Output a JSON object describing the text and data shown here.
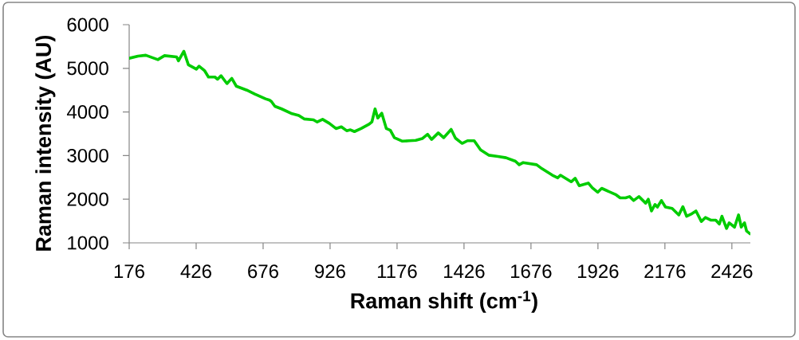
{
  "chart_data": {
    "type": "line",
    "xlabel": "Raman shift (cm$^{-1}$)",
    "ylabel": "Raman intensity (AU)",
    "x": [
      176,
      209,
      238,
      283,
      308,
      353,
      360,
      380,
      397,
      427,
      437,
      457,
      472,
      496,
      506,
      519,
      541,
      559,
      576,
      615,
      645,
      685,
      700,
      707,
      720,
      745,
      784,
      809,
      829,
      864,
      878,
      898,
      923,
      948,
      968,
      988,
      1002,
      1017,
      1042,
      1072,
      1082,
      1094,
      1104,
      1119,
      1136,
      1151,
      1166,
      1196,
      1221,
      1246,
      1270,
      1290,
      1305,
      1330,
      1350,
      1378,
      1394,
      1419,
      1439,
      1464,
      1488,
      1518,
      1553,
      1583,
      1618,
      1632,
      1647,
      1697,
      1717,
      1756,
      1776,
      1786,
      1826,
      1841,
      1856,
      1890,
      1905,
      1925,
      1940,
      1994,
      2009,
      2029,
      2044,
      2059,
      2079,
      2104,
      2114,
      2126,
      2139,
      2148,
      2163,
      2178,
      2203,
      2228,
      2243,
      2257,
      2277,
      2292,
      2312,
      2327,
      2347,
      2366,
      2379,
      2389,
      2406,
      2416,
      2436,
      2451,
      2461,
      2473,
      2481,
      2493
    ],
    "series": [
      {
        "color": "#00cc00",
        "values": [
          5230,
          5280,
          5300,
          5200,
          5290,
          5260,
          5170,
          5390,
          5080,
          4980,
          5050,
          4950,
          4800,
          4800,
          4750,
          4830,
          4650,
          4770,
          4590,
          4500,
          4410,
          4300,
          4270,
          4240,
          4130,
          4070,
          3960,
          3920,
          3840,
          3820,
          3770,
          3830,
          3740,
          3620,
          3660,
          3570,
          3590,
          3550,
          3620,
          3720,
          3770,
          4070,
          3860,
          3970,
          3620,
          3580,
          3410,
          3330,
          3340,
          3350,
          3390,
          3490,
          3370,
          3520,
          3410,
          3600,
          3400,
          3280,
          3340,
          3340,
          3130,
          3010,
          2980,
          2950,
          2870,
          2790,
          2840,
          2790,
          2700,
          2550,
          2490,
          2550,
          2400,
          2480,
          2310,
          2370,
          2260,
          2160,
          2250,
          2100,
          2030,
          2030,
          2060,
          1970,
          2060,
          1910,
          2000,
          1730,
          1880,
          1820,
          1970,
          1820,
          1790,
          1640,
          1830,
          1610,
          1670,
          1730,
          1490,
          1580,
          1520,
          1520,
          1430,
          1610,
          1330,
          1460,
          1360,
          1640,
          1360,
          1460,
          1270,
          1210
        ]
      }
    ],
    "xlim": [
      176,
      2495
    ],
    "xticks": [
      176,
      426,
      676,
      926,
      1176,
      1426,
      1676,
      1926,
      2176,
      2426
    ],
    "ylim": [
      1000,
      6000
    ],
    "yticks": [
      1000,
      2000,
      3000,
      4000,
      5000,
      6000
    ],
    "marker": "none",
    "line_style": "solid"
  }
}
